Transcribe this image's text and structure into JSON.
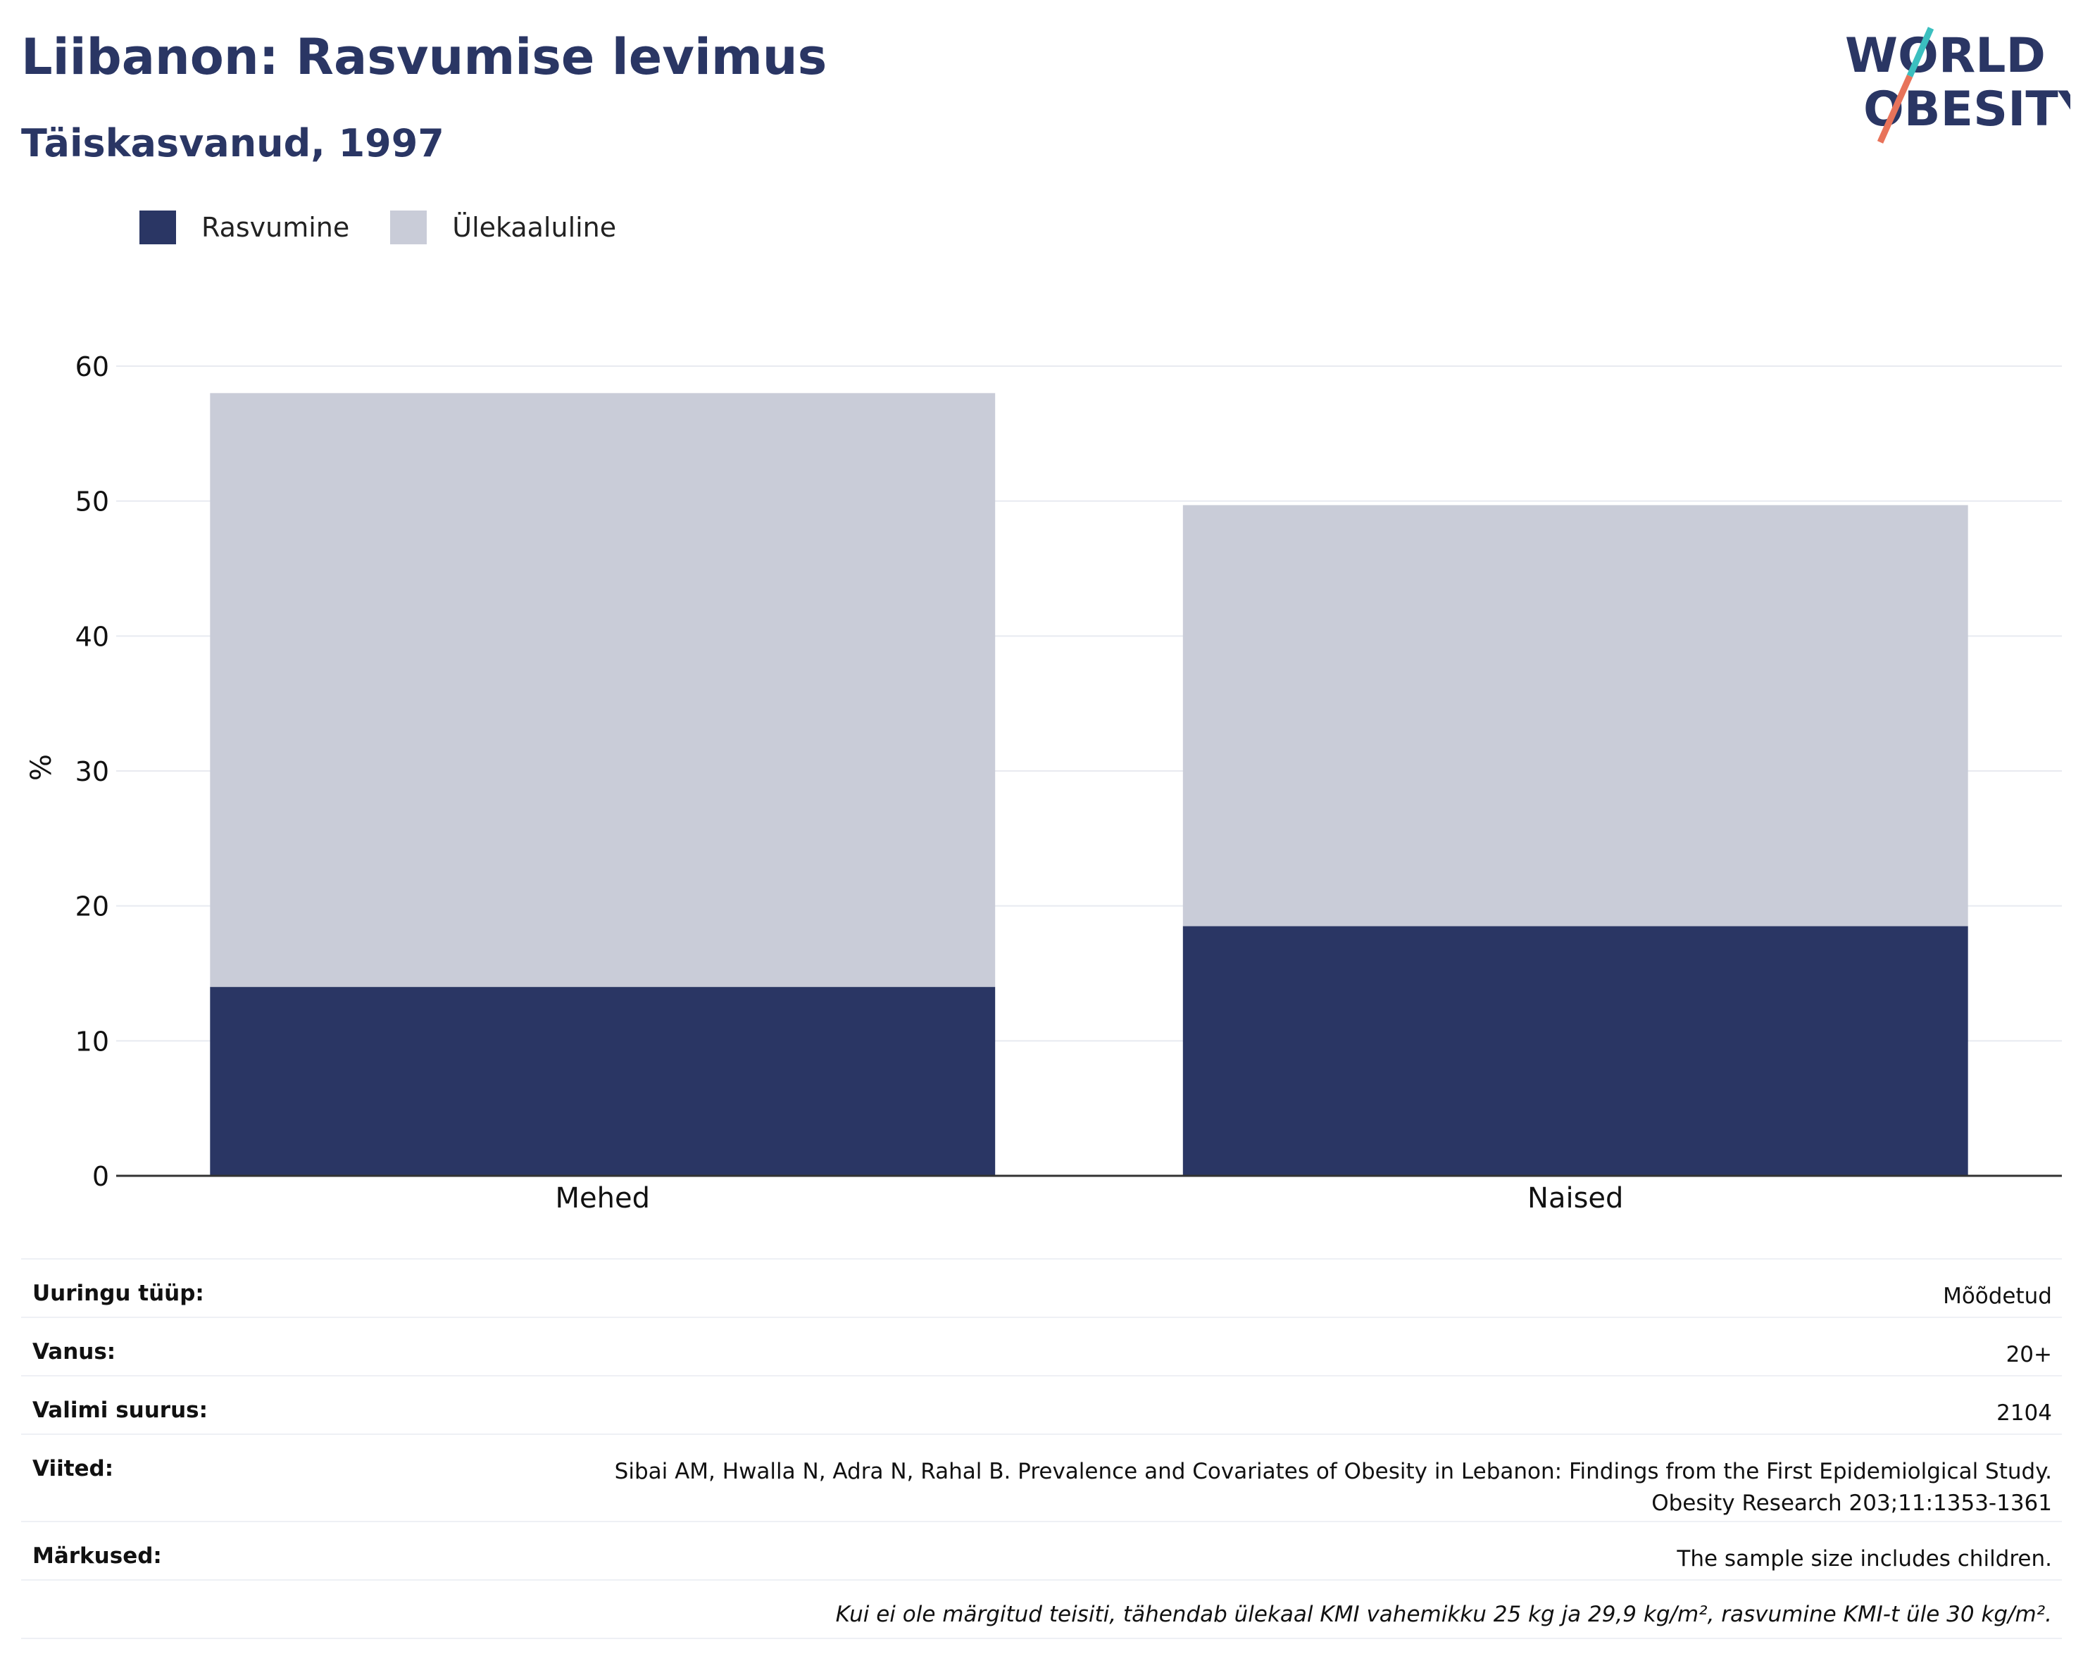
{
  "header": {
    "title": "Liibanon: Rasvumise levimus",
    "subtitle": "Täiskasvanud, 1997"
  },
  "logo": {
    "line1": "WORLD",
    "line2": "OBESITY",
    "colors": {
      "text": "#2a3664",
      "slash_top": "#3bbfbf",
      "slash_bottom": "#e8735a"
    }
  },
  "legend": [
    {
      "label": "Rasvumine",
      "color": "#2a3664"
    },
    {
      "label": "Ülekaaluline",
      "color": "#c9ccd8"
    }
  ],
  "chart_data": {
    "type": "bar",
    "stacked": true,
    "categories": [
      "Mehed",
      "Naised"
    ],
    "series": [
      {
        "name": "Rasvumine",
        "values": [
          14.0,
          18.5
        ],
        "color": "#2a3664"
      },
      {
        "name": "Ülekaaluline",
        "values": [
          44.0,
          31.2
        ],
        "color": "#c9ccd8"
      }
    ],
    "ylabel": "%",
    "ylim": [
      0,
      60
    ],
    "yticks": [
      0,
      10,
      20,
      30,
      40,
      50,
      60
    ],
    "grid": true
  },
  "info": {
    "rows": [
      {
        "label": "Uuringu tüüp:",
        "value": [
          "Mõõdetud"
        ]
      },
      {
        "label": "Vanus:",
        "value": [
          "20+"
        ]
      },
      {
        "label": "Valimi suurus:",
        "value": [
          "2104"
        ]
      },
      {
        "label": "Viited:",
        "value": [
          "Sibai AM, Hwalla N, Adra N, Rahal B. Prevalence and Covariates of Obesity in Lebanon: Findings from the First Epidemiolgical Study.",
          "Obesity Research 203;11:1353-1361"
        ]
      },
      {
        "label": "Märkused:",
        "value": [
          "The sample size includes children."
        ]
      }
    ],
    "footnote": "Kui ei ole märgitud teisiti, tähendab ülekaal KMI vahemikku 25 kg ja 29,9 kg/m², rasvumine KMI-t üle 30 kg/m²."
  }
}
